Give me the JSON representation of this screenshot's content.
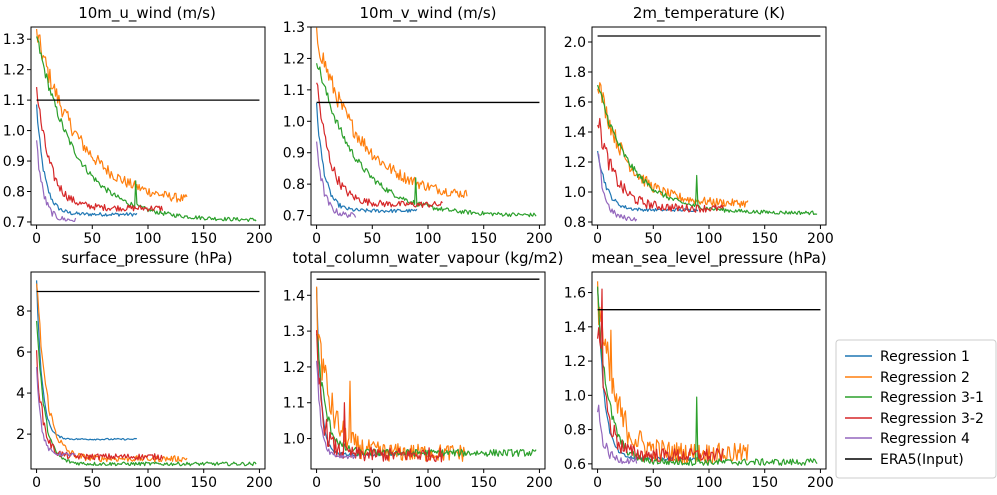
{
  "chart_data": {
    "type": "line",
    "x_ticks": [
      0,
      50,
      100,
      150,
      200
    ],
    "legend": {
      "placement": "right-bottom",
      "entries": [
        {
          "name": "Regression 1",
          "color": "#1f77b4"
        },
        {
          "name": "Regression 2",
          "color": "#ff7f0e"
        },
        {
          "name": "Regression 3-1",
          "color": "#2ca02c"
        },
        {
          "name": "Regression 3-2",
          "color": "#d62728"
        },
        {
          "name": "Regression 4",
          "color": "#9467bd"
        },
        {
          "name": "ERA5(Input)",
          "color": "#000000"
        }
      ]
    },
    "panels": [
      {
        "title": "10m_u_wind (m/s)",
        "xlim": [
          -5,
          205
        ],
        "ylim": [
          0.69,
          1.34
        ],
        "yticks": [
          0.7,
          0.8,
          0.9,
          1.0,
          1.1,
          1.2,
          1.3
        ],
        "ytick_labels": [
          "0.7",
          "0.8",
          "0.9",
          "1.0",
          "1.1",
          "1.2",
          "1.3"
        ],
        "era5": 1.1,
        "series": [
          {
            "name": "Regression 1",
            "length": 90,
            "start": 1.08,
            "end": 0.725,
            "tau": 7,
            "noise": 0.006,
            "spikes": []
          },
          {
            "name": "Regression 2",
            "length": 135,
            "start": 1.32,
            "end": 0.755,
            "tau": 40,
            "noise": 0.012,
            "spikes": []
          },
          {
            "name": "Regression 3-1",
            "length": 197,
            "start": 1.31,
            "end": 0.705,
            "tau": 35,
            "noise": 0.006,
            "spikes": [
              [
                89,
                0.835
              ]
            ]
          },
          {
            "name": "Regression 3-2",
            "length": 113,
            "start": 1.14,
            "end": 0.745,
            "tau": 12,
            "noise": 0.01,
            "spikes": []
          },
          {
            "name": "Regression 4",
            "length": 35,
            "start": 0.96,
            "end": 0.705,
            "tau": 6,
            "noise": 0.008,
            "spikes": []
          }
        ]
      },
      {
        "title": "10m_v_wind (m/s)",
        "xlim": [
          -5,
          205
        ],
        "ylim": [
          0.67,
          1.3
        ],
        "yticks": [
          0.7,
          0.8,
          0.9,
          1.0,
          1.1,
          1.2,
          1.3
        ],
        "ytick_labels": [
          "0.7",
          "0.8",
          "0.9",
          "1.0",
          "1.1",
          "1.2",
          "1.3"
        ],
        "era5": 1.06,
        "series": [
          {
            "name": "Regression 1",
            "length": 90,
            "start": 1.05,
            "end": 0.715,
            "tau": 7,
            "noise": 0.006,
            "spikes": []
          },
          {
            "name": "Regression 2",
            "length": 135,
            "start": 1.27,
            "end": 0.75,
            "tau": 40,
            "noise": 0.012,
            "spikes": []
          },
          {
            "name": "Regression 3-1",
            "length": 197,
            "start": 1.2,
            "end": 0.7,
            "tau": 35,
            "noise": 0.006,
            "spikes": [
              [
                89,
                0.82
              ]
            ]
          },
          {
            "name": "Regression 3-2",
            "length": 113,
            "start": 1.13,
            "end": 0.735,
            "tau": 12,
            "noise": 0.01,
            "spikes": []
          },
          {
            "name": "Regression 4",
            "length": 35,
            "start": 0.94,
            "end": 0.7,
            "tau": 6,
            "noise": 0.008,
            "spikes": []
          }
        ]
      },
      {
        "title": "2m_temperature (K)",
        "xlim": [
          -5,
          205
        ],
        "ylim": [
          0.78,
          2.1
        ],
        "yticks": [
          0.8,
          1.0,
          1.2,
          1.4,
          1.6,
          1.8,
          2.0
        ],
        "ytick_labels": [
          "0.8",
          "1.0",
          "1.2",
          "1.4",
          "1.6",
          "1.8",
          "2.0"
        ],
        "era5": 2.04,
        "series": [
          {
            "name": "Regression 1",
            "length": 90,
            "start": 1.3,
            "end": 0.88,
            "tau": 8,
            "noise": 0.01,
            "spikes": []
          },
          {
            "name": "Regression 2",
            "length": 135,
            "start": 1.76,
            "end": 0.92,
            "tau": 25,
            "noise": 0.025,
            "spikes": []
          },
          {
            "name": "Regression 3-1",
            "length": 197,
            "start": 1.72,
            "end": 0.86,
            "tau": 30,
            "noise": 0.012,
            "spikes": [
              [
                89,
                1.11
              ]
            ]
          },
          {
            "name": "Regression 3-2",
            "length": 113,
            "start": 1.5,
            "end": 0.89,
            "tau": 15,
            "noise": 0.025,
            "spikes": []
          },
          {
            "name": "Regression 4",
            "length": 35,
            "start": 1.28,
            "end": 0.82,
            "tau": 6,
            "noise": 0.015,
            "spikes": []
          }
        ]
      },
      {
        "title": "surface_pressure (hPa)",
        "xlim": [
          -5,
          205
        ],
        "ylim": [
          0.3,
          9.9
        ],
        "yticks": [
          2,
          4,
          6,
          8
        ],
        "ytick_labels": [
          "2",
          "4",
          "6",
          "8"
        ],
        "era5": 8.95,
        "series": [
          {
            "name": "Regression 1",
            "length": 90,
            "start": 9.4,
            "end": 1.75,
            "tau": 5,
            "noise": 0.04,
            "spikes": []
          },
          {
            "name": "Regression 2",
            "length": 135,
            "start": 9.6,
            "end": 0.8,
            "tau": 9,
            "noise": 0.15,
            "spikes": []
          },
          {
            "name": "Regression 3-1",
            "length": 197,
            "start": 7.7,
            "end": 0.55,
            "tau": 7,
            "noise": 0.09,
            "spikes": []
          },
          {
            "name": "Regression 3-2",
            "length": 113,
            "start": 5.8,
            "end": 0.9,
            "tau": 6,
            "noise": 0.15,
            "spikes": []
          },
          {
            "name": "Regression 4",
            "length": 35,
            "start": 5.4,
            "end": 1.0,
            "tau": 4,
            "noise": 0.08,
            "spikes": []
          }
        ]
      },
      {
        "title": "total_column_water_vapour (kg/m2)",
        "xlim": [
          -5,
          205
        ],
        "ylim": [
          0.915,
          1.465
        ],
        "yticks": [
          1.0,
          1.1,
          1.2,
          1.3,
          1.4
        ],
        "ytick_labels": [
          "1.0",
          "1.1",
          "1.2",
          "1.3",
          "1.4"
        ],
        "era5": 1.445,
        "series": [
          {
            "name": "Regression 1",
            "length": 90,
            "start": 1.41,
            "end": 0.955,
            "tau": 4,
            "noise": 0.004,
            "spikes": []
          },
          {
            "name": "Regression 2",
            "length": 135,
            "start": 1.35,
            "end": 0.96,
            "tau": 12,
            "noise": 0.025,
            "spikes": [
              [
                30,
                1.16
              ]
            ]
          },
          {
            "name": "Regression 3-1",
            "length": 197,
            "start": 1.3,
            "end": 0.96,
            "tau": 8,
            "noise": 0.01,
            "spikes": []
          },
          {
            "name": "Regression 3-2",
            "length": 113,
            "start": 1.25,
            "end": 0.955,
            "tau": 6,
            "noise": 0.02,
            "spikes": [
              [
                25,
                1.1
              ]
            ]
          },
          {
            "name": "Regression 4",
            "length": 35,
            "start": 1.22,
            "end": 0.95,
            "tau": 4,
            "noise": 0.006,
            "spikes": []
          }
        ]
      },
      {
        "title": "mean_sea_level_pressure (hPa)",
        "xlim": [
          -5,
          205
        ],
        "ylim": [
          0.57,
          1.72
        ],
        "yticks": [
          0.6,
          0.8,
          1.0,
          1.2,
          1.4,
          1.6
        ],
        "ytick_labels": [
          "0.6",
          "0.8",
          "1.0",
          "1.2",
          "1.4",
          "1.6"
        ],
        "era5": 1.5,
        "series": [
          {
            "name": "Regression 1",
            "length": 90,
            "start": 1.65,
            "end": 0.63,
            "tau": 6,
            "noise": 0.01,
            "spikes": []
          },
          {
            "name": "Regression 2",
            "length": 135,
            "start": 1.65,
            "end": 0.66,
            "tau": 14,
            "noise": 0.06,
            "spikes": [
              [
                12,
                1.38
              ]
            ]
          },
          {
            "name": "Regression 3-1",
            "length": 197,
            "start": 1.6,
            "end": 0.61,
            "tau": 10,
            "noise": 0.02,
            "spikes": [
              [
                89,
                0.99
              ]
            ]
          },
          {
            "name": "Regression 3-2",
            "length": 113,
            "start": 1.45,
            "end": 0.65,
            "tau": 8,
            "noise": 0.04,
            "spikes": [
              [
                4,
                1.62
              ]
            ]
          },
          {
            "name": "Regression 4",
            "length": 35,
            "start": 0.95,
            "end": 0.62,
            "tau": 5,
            "noise": 0.02,
            "spikes": []
          }
        ]
      }
    ]
  }
}
